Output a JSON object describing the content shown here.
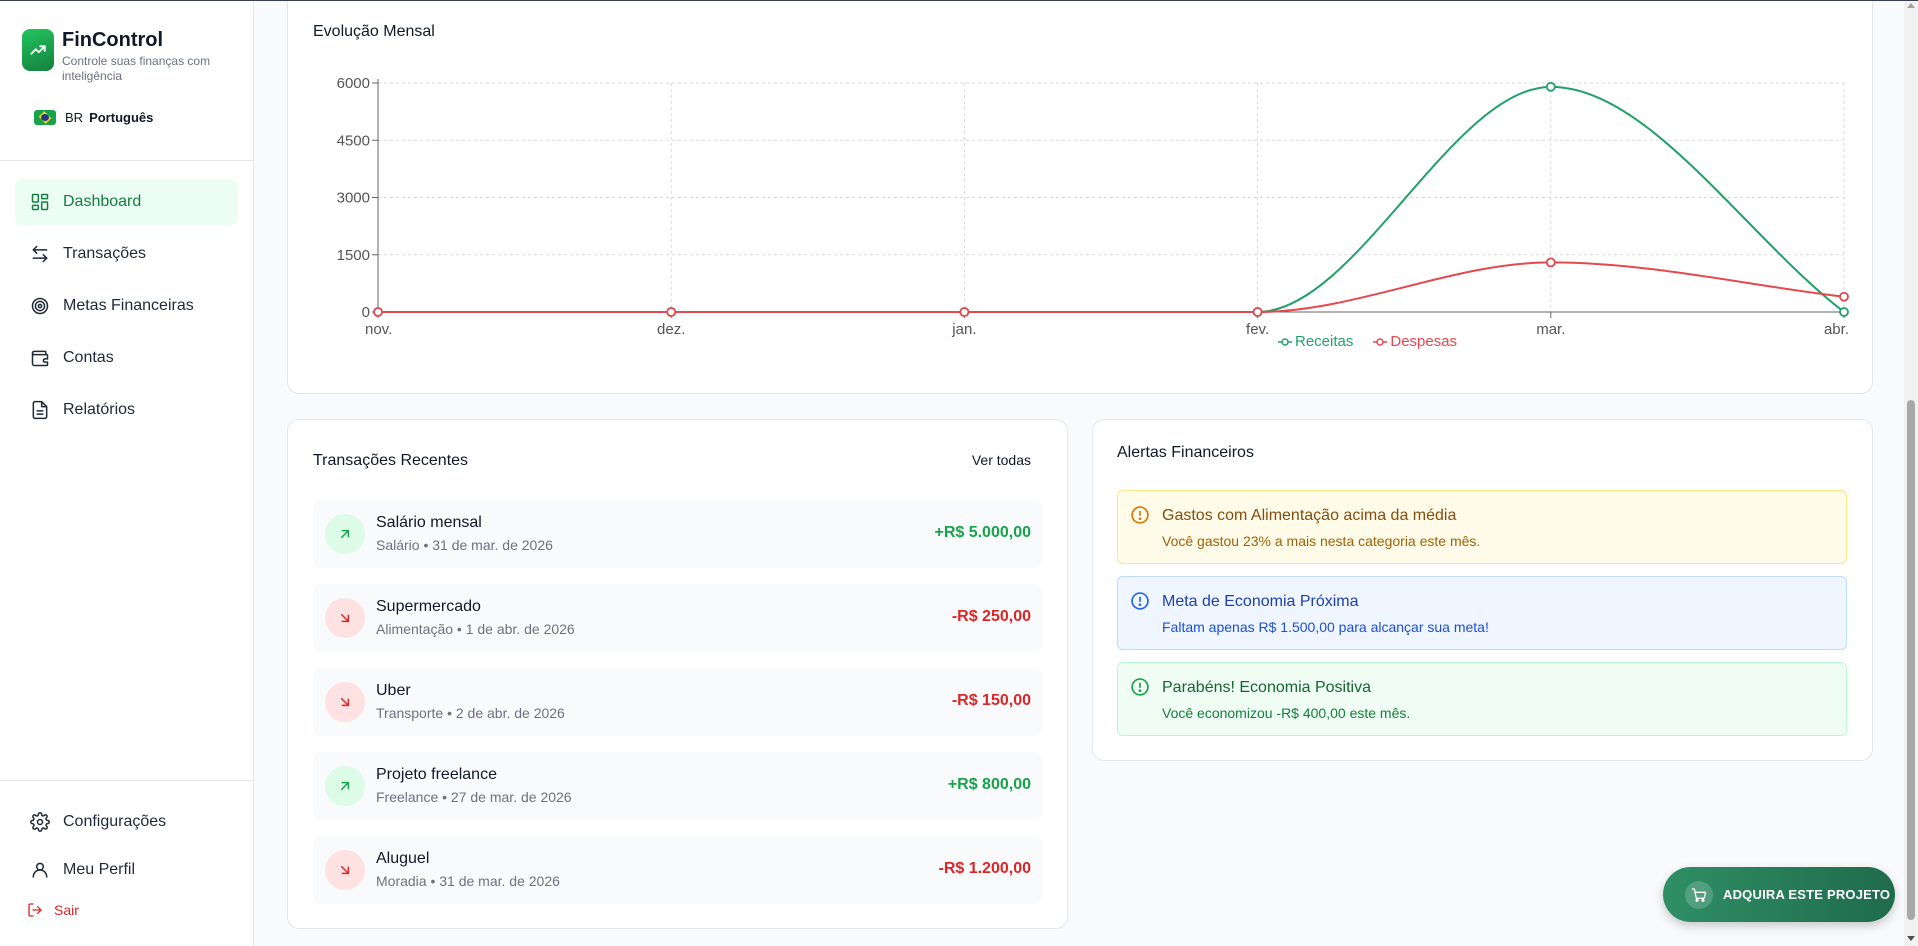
{
  "brand": {
    "title": "FinControl",
    "subtitle": "Controle suas finanças com inteligência"
  },
  "language": {
    "code": "BR",
    "name": "Português"
  },
  "nav": [
    {
      "label": "Dashboard",
      "icon": "dashboard-icon",
      "active": true
    },
    {
      "label": "Transações",
      "icon": "arrows-icon"
    },
    {
      "label": "Metas Financeiras",
      "icon": "target-icon"
    },
    {
      "label": "Contas",
      "icon": "wallet-icon"
    },
    {
      "label": "Relatórios",
      "icon": "file-icon"
    }
  ],
  "footer_nav": [
    {
      "label": "Configurações",
      "icon": "gear-icon"
    },
    {
      "label": "Meu Perfil",
      "icon": "user-icon"
    }
  ],
  "logout_label": "Sair",
  "chart_card": {
    "title": "Evolução Mensal"
  },
  "chart_data": {
    "type": "line",
    "title": "Evolução Mensal",
    "categories": [
      "nov.",
      "dez.",
      "jan.",
      "fev.",
      "mar.",
      "abr."
    ],
    "series": [
      {
        "name": "Receitas",
        "color": "#22a06b",
        "values": [
          0,
          0,
          0,
          0,
          5900,
          0
        ]
      },
      {
        "name": "Despesas",
        "color": "#e5484d",
        "values": [
          0,
          0,
          0,
          0,
          1300,
          400
        ]
      }
    ],
    "yticks": [
      0,
      1500,
      3000,
      4500,
      6000
    ],
    "ylim": [
      0,
      6000
    ],
    "grid": true,
    "legend": "bottom-center"
  },
  "transactions_card": {
    "title": "Transações Recentes",
    "view_all": "Ver todas"
  },
  "transactions": [
    {
      "title": "Salário mensal",
      "subtitle": "Salário • 31 de mar. de 2026",
      "amount": "+R$ 5.000,00",
      "type": "in"
    },
    {
      "title": "Supermercado",
      "subtitle": "Alimentação • 1 de abr. de 2026",
      "amount": "-R$ 250,00",
      "type": "out"
    },
    {
      "title": "Uber",
      "subtitle": "Transporte • 2 de abr. de 2026",
      "amount": "-R$ 150,00",
      "type": "out"
    },
    {
      "title": "Projeto freelance",
      "subtitle": "Freelance • 27 de mar. de 2026",
      "amount": "+R$ 800,00",
      "type": "in"
    },
    {
      "title": "Aluguel",
      "subtitle": "Moradia • 31 de mar. de 2026",
      "amount": "-R$ 1.200,00",
      "type": "out"
    }
  ],
  "alerts_card": {
    "title": "Alertas Financeiros"
  },
  "alerts": [
    {
      "title": "Gastos com Alimentação acima da média",
      "message": "Você gastou 23% a mais nesta categoria este mês.",
      "kind": "warn",
      "icon_color": "#d97706"
    },
    {
      "title": "Meta de Economia Próxima",
      "message": "Faltam apenas R$ 1.500,00 para alcançar sua meta!",
      "kind": "info",
      "icon_color": "#2563eb"
    },
    {
      "title": "Parabéns! Economia Positiva",
      "message": "Você economizou -R$ 400,00 este mês.",
      "kind": "ok",
      "icon_color": "#16a34a"
    }
  ],
  "buy_button": {
    "label": "ADQUIRA ESTE PROJETO"
  }
}
